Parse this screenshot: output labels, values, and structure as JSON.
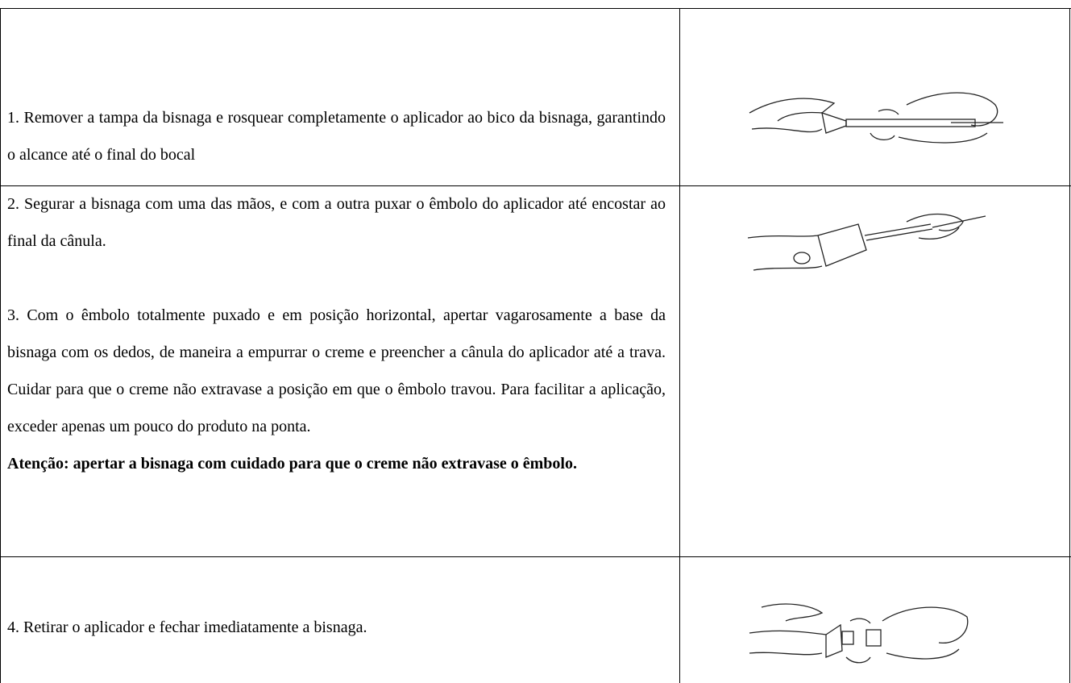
{
  "table": {
    "rows": [
      {
        "paragraphs": [
          "1. Remover a tampa da bisnaga e rosquear completamente o aplicador ao bico da bisnaga, garantindo o alcance até o final do bocal"
        ]
      },
      {
        "paragraphs": [
          "2. Segurar a bisnaga com uma das mãos, e com a outra puxar o êmbolo do aplicador até encostar ao final da cânula.",
          "3. Com o êmbolo totalmente puxado e em posição horizontal, apertar vagarosamente a base da bisnaga com os dedos, de maneira a empurrar o creme e preencher a cânula do aplicador até a trava. Cuidar para que o creme não extravase a posição em que o êmbolo travou. Para facilitar a aplicação, exceder apenas um pouco do produto na ponta."
        ],
        "warning": "Atenção: apertar a bisnaga com cuidado para que o creme não extravase o êmbolo."
      },
      {
        "paragraphs": [
          "4. Retirar o aplicador e fechar imediatamente a bisnaga."
        ]
      }
    ]
  }
}
